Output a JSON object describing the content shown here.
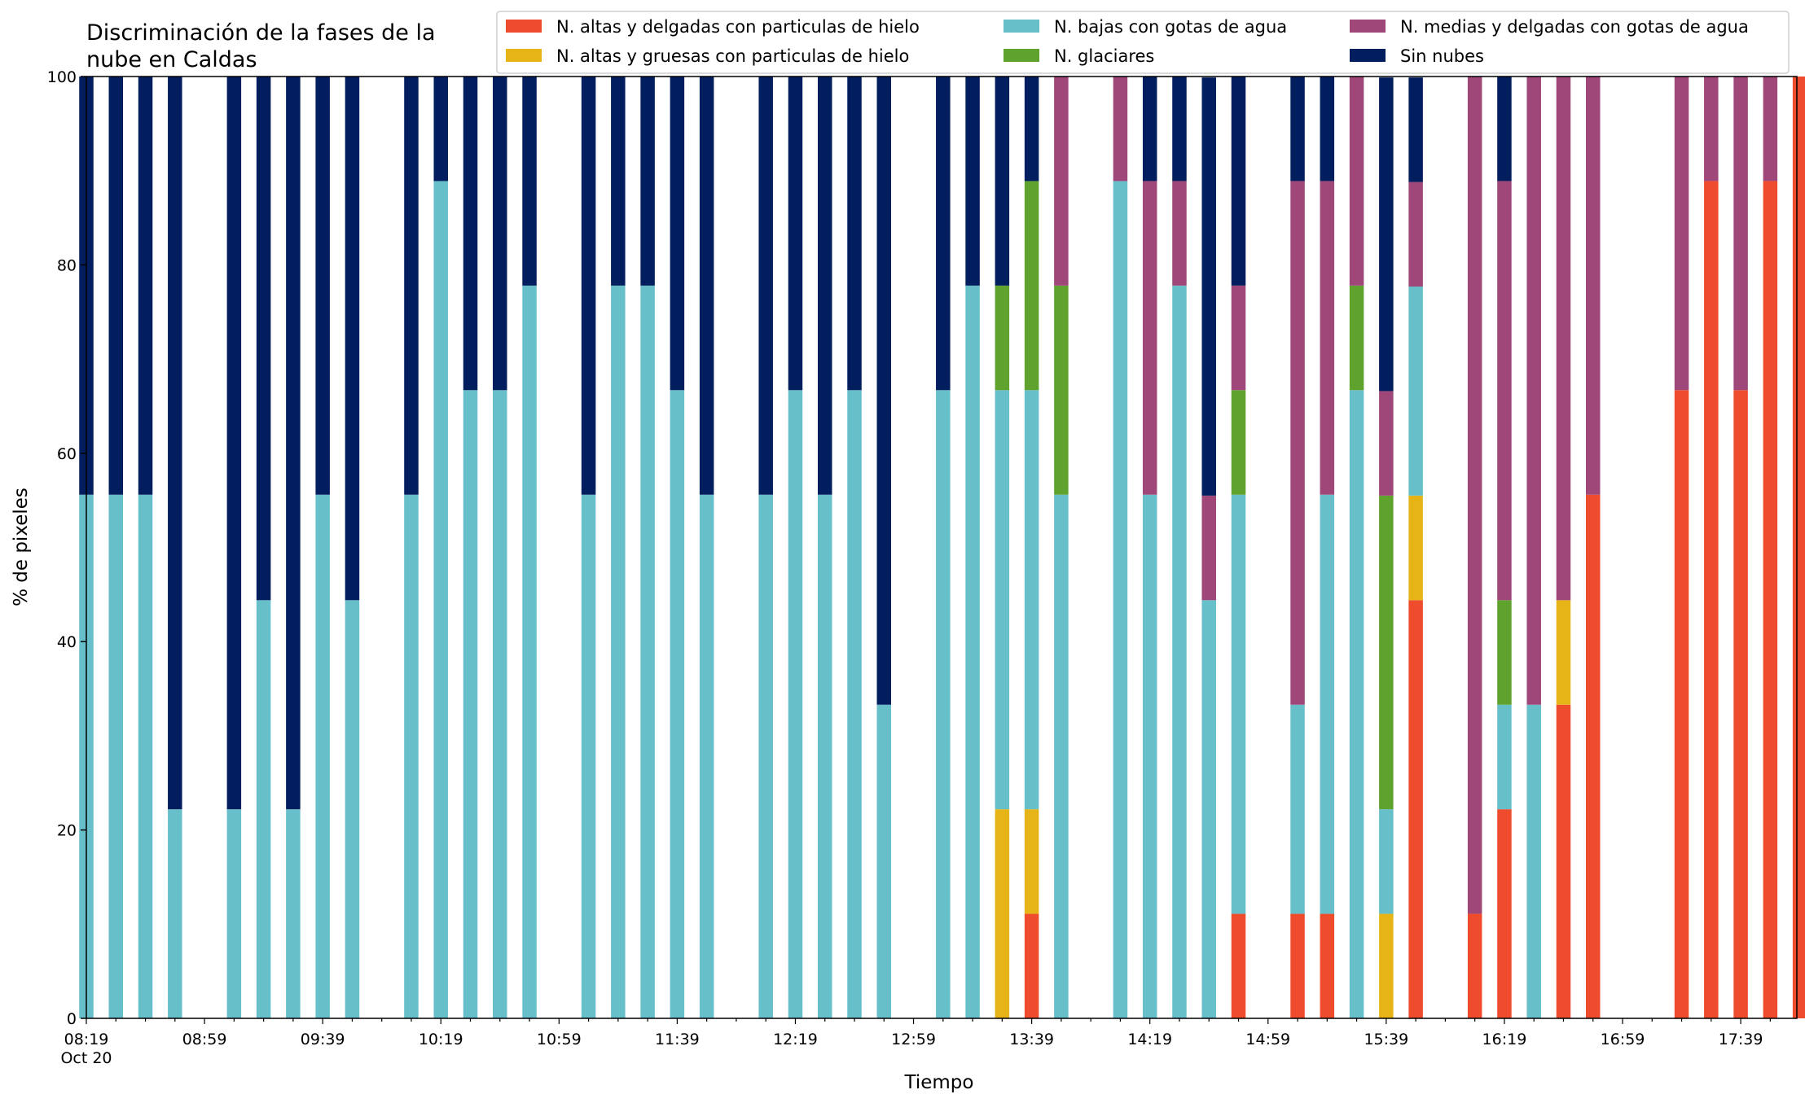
{
  "chart_data": {
    "type": "bar",
    "stacked": true,
    "title_lines": [
      "Discriminación de la fases de la",
      "nube en Caldas"
    ],
    "xlabel": "Tiempo",
    "ylabel": "% de pixeles",
    "ylim": [
      0,
      100
    ],
    "yticks": [
      "0",
      "20",
      "40",
      "60",
      "80",
      "100"
    ],
    "xtick_labels": [
      "08:19",
      "08:59",
      "09:39",
      "10:19",
      "10:59",
      "11:39",
      "12:19",
      "12:59",
      "13:39",
      "14:19",
      "14:59",
      "15:39",
      "16:19",
      "16:59",
      "17:39"
    ],
    "xtick_sublabel": "Oct 20",
    "time_start_min": 499,
    "time_end_min": 1078,
    "slot_minutes": 10,
    "legend_position": "upper-right",
    "legend_columns": 3,
    "series": [
      {
        "name": "N. altas y delgadas con particulas de hielo",
        "color": "#ee4c2c",
        "values": [
          0,
          0,
          0,
          0,
          null,
          0,
          0,
          0,
          0,
          0,
          null,
          0,
          0,
          0,
          0,
          0,
          null,
          0,
          0,
          0,
          0,
          0,
          null,
          0,
          0,
          0,
          0,
          0,
          null,
          0,
          0,
          0,
          11.1,
          0,
          null,
          0,
          0,
          0,
          0,
          11.1,
          null,
          11.1,
          11.1,
          0,
          0,
          44.4,
          null,
          11.1,
          22.2,
          0,
          33.3,
          55.6,
          null,
          null,
          66.7,
          88.9,
          66.7,
          88.9,
          100
        ]
      },
      {
        "name": "N. altas y gruesas con particulas de hielo",
        "color": "#e6b416",
        "values": [
          0,
          0,
          0,
          0,
          null,
          0,
          0,
          0,
          0,
          0,
          null,
          0,
          0,
          0,
          0,
          0,
          null,
          0,
          0,
          0,
          0,
          0,
          null,
          0,
          0,
          0,
          0,
          0,
          null,
          0,
          0,
          22.2,
          11.1,
          0,
          null,
          0,
          0,
          0,
          0,
          0,
          null,
          0,
          0,
          0,
          11.1,
          11.1,
          null,
          0,
          0,
          0,
          11.1,
          0,
          null,
          null,
          0,
          0,
          0,
          0,
          0
        ]
      },
      {
        "name": "N. bajas con gotas de agua",
        "color": "#67bfca",
        "values": [
          55.6,
          55.6,
          55.6,
          22.2,
          null,
          22.2,
          44.4,
          22.2,
          55.6,
          44.4,
          null,
          55.6,
          88.9,
          66.7,
          66.7,
          77.8,
          null,
          55.6,
          77.8,
          77.8,
          66.7,
          55.6,
          null,
          55.6,
          66.7,
          55.6,
          66.7,
          33.3,
          null,
          66.7,
          77.8,
          44.5,
          44.5,
          55.6,
          null,
          88.9,
          55.6,
          77.8,
          44.4,
          44.5,
          null,
          22.2,
          44.5,
          66.7,
          11.1,
          22.2,
          null,
          0,
          11.1,
          33.3,
          0,
          0,
          null,
          null,
          0,
          0,
          0,
          0,
          0
        ]
      },
      {
        "name": "N. glaciares",
        "color": "#5fa22e",
        "values": [
          0,
          0,
          0,
          0,
          null,
          0,
          0,
          0,
          0,
          0,
          null,
          0,
          0,
          0,
          0,
          0,
          null,
          0,
          0,
          0,
          0,
          0,
          null,
          0,
          0,
          0,
          0,
          0,
          null,
          0,
          0,
          11.1,
          22.2,
          22.2,
          null,
          0,
          0,
          0,
          0,
          11.1,
          null,
          0,
          0,
          11.1,
          33.3,
          0,
          null,
          0,
          11.1,
          0,
          0,
          0,
          null,
          null,
          0,
          0,
          0,
          0,
          0
        ]
      },
      {
        "name": "N. medias y delgadas con gotas de agua",
        "color": "#a0477a",
        "values": [
          0,
          0,
          0,
          0,
          null,
          0,
          0,
          0,
          0,
          0,
          null,
          0,
          0,
          0,
          0,
          0,
          null,
          0,
          0,
          0,
          0,
          0,
          null,
          0,
          0,
          0,
          0,
          0,
          null,
          0,
          0,
          0,
          0,
          22.2,
          null,
          11.1,
          33.3,
          11.1,
          11.1,
          11.1,
          null,
          55.6,
          33.3,
          22.2,
          11.1,
          11.1,
          null,
          88.9,
          44.5,
          66.7,
          55.6,
          44.4,
          null,
          null,
          33.3,
          11.1,
          33.3,
          11.1,
          0
        ]
      },
      {
        "name": "Sin nubes",
        "color": "#031e5e",
        "values": [
          44.4,
          44.4,
          44.4,
          77.8,
          null,
          77.8,
          55.6,
          77.8,
          44.4,
          55.6,
          null,
          44.4,
          11.1,
          33.3,
          33.3,
          22.2,
          null,
          44.4,
          22.2,
          22.2,
          33.3,
          44.4,
          null,
          44.4,
          33.3,
          44.4,
          33.3,
          66.7,
          null,
          33.3,
          22.2,
          22.2,
          11.1,
          0,
          null,
          0,
          11.1,
          11.1,
          44.4,
          22.2,
          null,
          11.1,
          11.1,
          0,
          33.3,
          11.1,
          null,
          0,
          11.1,
          0,
          0,
          0,
          null,
          null,
          0,
          0,
          0,
          0,
          0
        ]
      }
    ]
  }
}
